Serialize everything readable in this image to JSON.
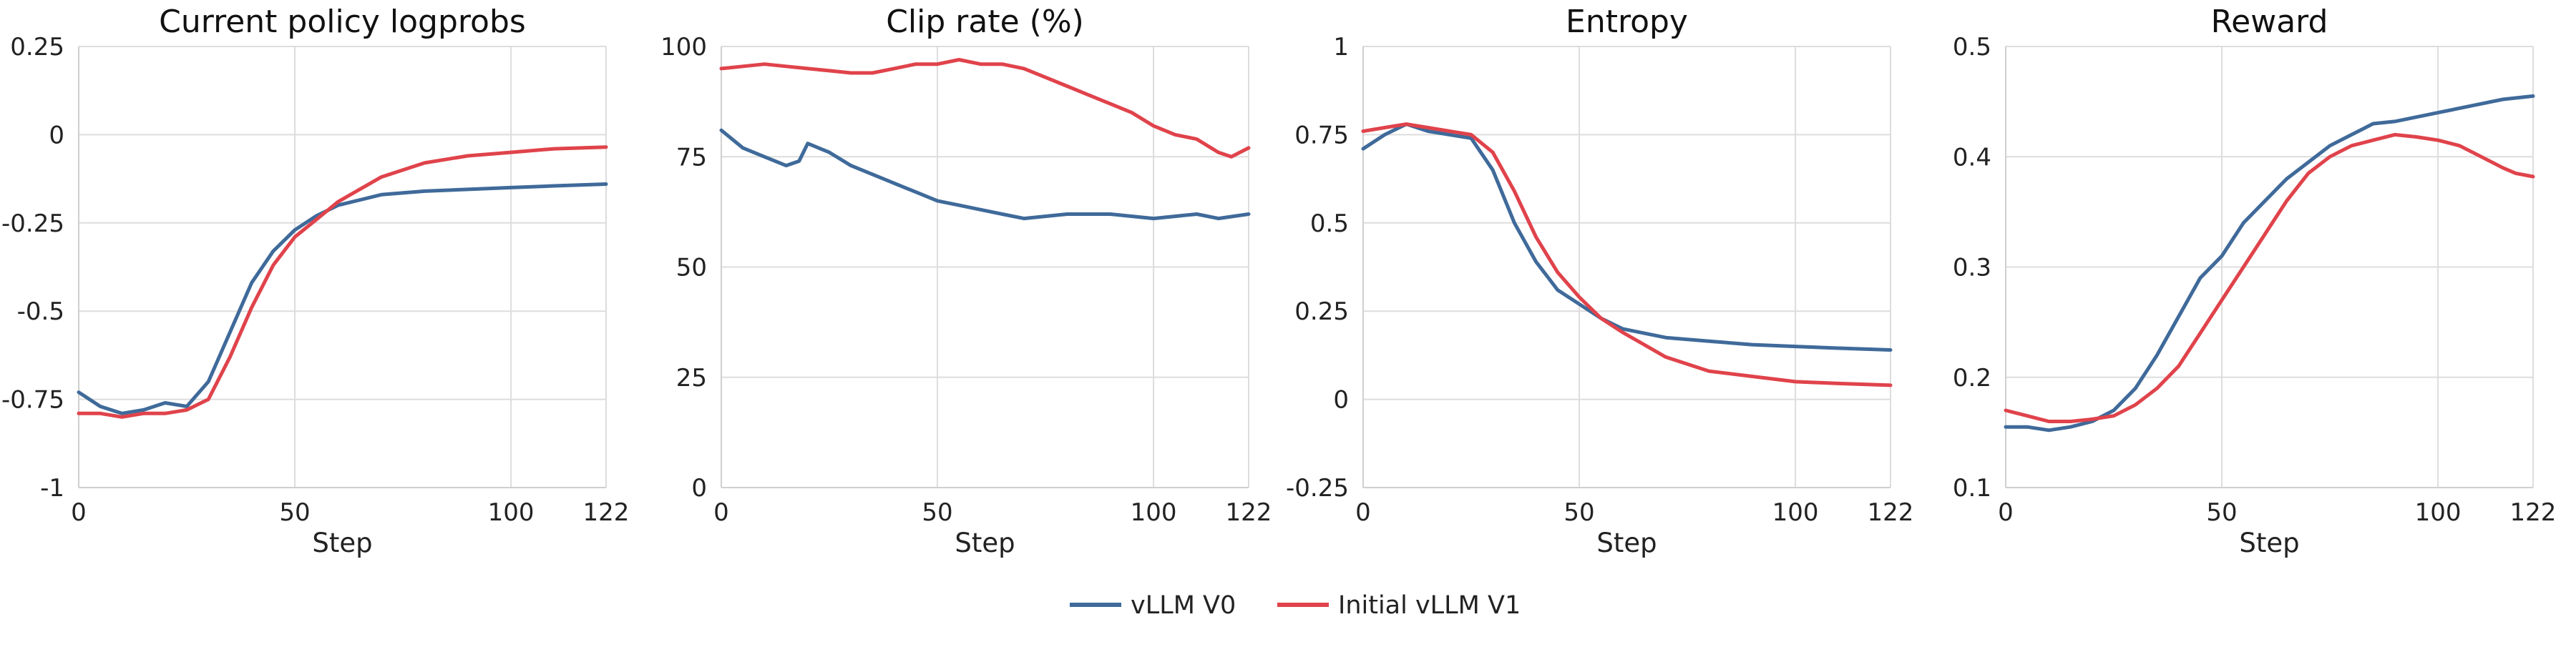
{
  "colors": {
    "vllm_v0": "#3f6a9a",
    "initial_vllm_v1": "#e0434b",
    "grid": "#dddddd"
  },
  "legend": {
    "placement": "bottom-center",
    "entries": [
      {
        "label": "vLLM V0",
        "color": "#3f6a9a"
      },
      {
        "label": "Initial vLLM V1",
        "color": "#e0434b"
      }
    ]
  },
  "chart_data": [
    {
      "type": "line",
      "title": "Current policy logprobs",
      "xlabel": "Step",
      "ylabel": "",
      "xlim": [
        0,
        122
      ],
      "ylim": [
        -1,
        0.25
      ],
      "xticks": [
        0,
        50,
        100,
        122
      ],
      "xtick_labels": [
        "0",
        "50",
        "100",
        "122"
      ],
      "yticks": [
        -1,
        -0.75,
        -0.5,
        -0.25,
        0,
        0.25
      ],
      "ytick_labels": [
        "-1",
        "-0.75",
        "-0.5",
        "-0.25",
        "0",
        "0.25"
      ],
      "grid": true,
      "series": [
        {
          "name": "vLLM V0",
          "color": "#3f6a9a",
          "x": [
            0,
            5,
            10,
            15,
            20,
            25,
            30,
            35,
            40,
            45,
            50,
            55,
            60,
            70,
            80,
            90,
            100,
            110,
            122
          ],
          "y": [
            -0.73,
            -0.77,
            -0.79,
            -0.78,
            -0.76,
            -0.77,
            -0.7,
            -0.56,
            -0.42,
            -0.33,
            -0.27,
            -0.23,
            -0.2,
            -0.17,
            -0.16,
            -0.155,
            -0.15,
            -0.145,
            -0.14
          ]
        },
        {
          "name": "Initial vLLM V1",
          "color": "#e0434b",
          "x": [
            0,
            5,
            10,
            15,
            20,
            25,
            30,
            35,
            40,
            45,
            50,
            55,
            60,
            70,
            80,
            90,
            100,
            110,
            122
          ],
          "y": [
            -0.79,
            -0.79,
            -0.8,
            -0.79,
            -0.79,
            -0.78,
            -0.75,
            -0.63,
            -0.49,
            -0.37,
            -0.29,
            -0.24,
            -0.19,
            -0.12,
            -0.08,
            -0.06,
            -0.05,
            -0.04,
            -0.035
          ]
        }
      ]
    },
    {
      "type": "line",
      "title": "Clip rate (%)",
      "xlabel": "Step",
      "ylabel": "",
      "xlim": [
        0,
        122
      ],
      "ylim": [
        0,
        100
      ],
      "xticks": [
        0,
        50,
        100,
        122
      ],
      "xtick_labels": [
        "0",
        "50",
        "100",
        "122"
      ],
      "yticks": [
        0,
        25,
        50,
        75,
        100
      ],
      "ytick_labels": [
        "0",
        "25",
        "50",
        "75",
        "100"
      ],
      "grid": true,
      "series": [
        {
          "name": "vLLM V0",
          "color": "#3f6a9a",
          "x": [
            0,
            5,
            10,
            15,
            18,
            20,
            25,
            30,
            35,
            40,
            45,
            50,
            55,
            60,
            65,
            70,
            80,
            90,
            100,
            110,
            115,
            122
          ],
          "y": [
            81,
            77,
            75,
            73,
            74,
            78,
            76,
            73,
            71,
            69,
            67,
            65,
            64,
            63,
            62,
            61,
            62,
            62,
            61,
            62,
            61,
            62
          ]
        },
        {
          "name": "Initial vLLM V1",
          "color": "#e0434b",
          "x": [
            0,
            5,
            10,
            15,
            20,
            25,
            30,
            35,
            40,
            45,
            50,
            55,
            60,
            65,
            70,
            75,
            80,
            85,
            90,
            95,
            100,
            105,
            110,
            115,
            118,
            122
          ],
          "y": [
            95,
            95.5,
            96,
            95.5,
            95,
            94.5,
            94,
            94,
            95,
            96,
            96,
            97,
            96,
            96,
            95,
            93,
            91,
            89,
            87,
            85,
            82,
            80,
            79,
            76,
            75,
            77
          ]
        }
      ]
    },
    {
      "type": "line",
      "title": "Entropy",
      "xlabel": "Step",
      "ylabel": "",
      "xlim": [
        0,
        122
      ],
      "ylim": [
        -0.25,
        1
      ],
      "xticks": [
        0,
        50,
        100,
        122
      ],
      "xtick_labels": [
        "0",
        "50",
        "100",
        "122"
      ],
      "yticks": [
        -0.25,
        0,
        0.25,
        0.5,
        0.75,
        1
      ],
      "ytick_labels": [
        "-0.25",
        "0",
        "0.25",
        "0.5",
        "0.75",
        "1"
      ],
      "grid": true,
      "series": [
        {
          "name": "vLLM V0",
          "color": "#3f6a9a",
          "x": [
            0,
            5,
            10,
            15,
            20,
            25,
            30,
            35,
            40,
            45,
            50,
            55,
            60,
            70,
            80,
            90,
            100,
            110,
            122
          ],
          "y": [
            0.71,
            0.75,
            0.78,
            0.76,
            0.75,
            0.74,
            0.65,
            0.5,
            0.39,
            0.31,
            0.27,
            0.23,
            0.2,
            0.175,
            0.165,
            0.155,
            0.15,
            0.145,
            0.14
          ]
        },
        {
          "name": "Initial vLLM V1",
          "color": "#e0434b",
          "x": [
            0,
            5,
            10,
            15,
            20,
            25,
            30,
            35,
            40,
            45,
            50,
            55,
            60,
            70,
            80,
            90,
            100,
            110,
            122
          ],
          "y": [
            0.76,
            0.77,
            0.78,
            0.77,
            0.76,
            0.75,
            0.7,
            0.59,
            0.46,
            0.36,
            0.29,
            0.23,
            0.19,
            0.12,
            0.08,
            0.065,
            0.05,
            0.045,
            0.04
          ]
        }
      ]
    },
    {
      "type": "line",
      "title": "Reward",
      "xlabel": "Step",
      "ylabel": "",
      "xlim": [
        0,
        122
      ],
      "ylim": [
        0.1,
        0.5
      ],
      "xticks": [
        0,
        50,
        100,
        122
      ],
      "xtick_labels": [
        "0",
        "50",
        "100",
        "122"
      ],
      "yticks": [
        0.1,
        0.2,
        0.3,
        0.4,
        0.5
      ],
      "ytick_labels": [
        "0.1",
        "0.2",
        "0.3",
        "0.4",
        "0.5"
      ],
      "grid": true,
      "series": [
        {
          "name": "vLLM V0",
          "color": "#3f6a9a",
          "x": [
            0,
            5,
            10,
            15,
            20,
            25,
            30,
            35,
            40,
            45,
            50,
            55,
            60,
            65,
            70,
            75,
            80,
            85,
            90,
            100,
            110,
            115,
            122
          ],
          "y": [
            0.155,
            0.155,
            0.152,
            0.155,
            0.16,
            0.17,
            0.19,
            0.22,
            0.255,
            0.29,
            0.31,
            0.34,
            0.36,
            0.38,
            0.395,
            0.41,
            0.42,
            0.43,
            0.432,
            0.44,
            0.448,
            0.452,
            0.455
          ]
        },
        {
          "name": "Initial vLLM V1",
          "color": "#e0434b",
          "x": [
            0,
            5,
            10,
            15,
            20,
            25,
            30,
            35,
            40,
            45,
            50,
            55,
            60,
            65,
            70,
            75,
            80,
            85,
            90,
            95,
            100,
            105,
            110,
            115,
            118,
            122
          ],
          "y": [
            0.17,
            0.165,
            0.16,
            0.16,
            0.162,
            0.165,
            0.175,
            0.19,
            0.21,
            0.24,
            0.27,
            0.3,
            0.33,
            0.36,
            0.385,
            0.4,
            0.41,
            0.415,
            0.42,
            0.418,
            0.415,
            0.41,
            0.4,
            0.39,
            0.385,
            0.382
          ]
        }
      ]
    }
  ]
}
